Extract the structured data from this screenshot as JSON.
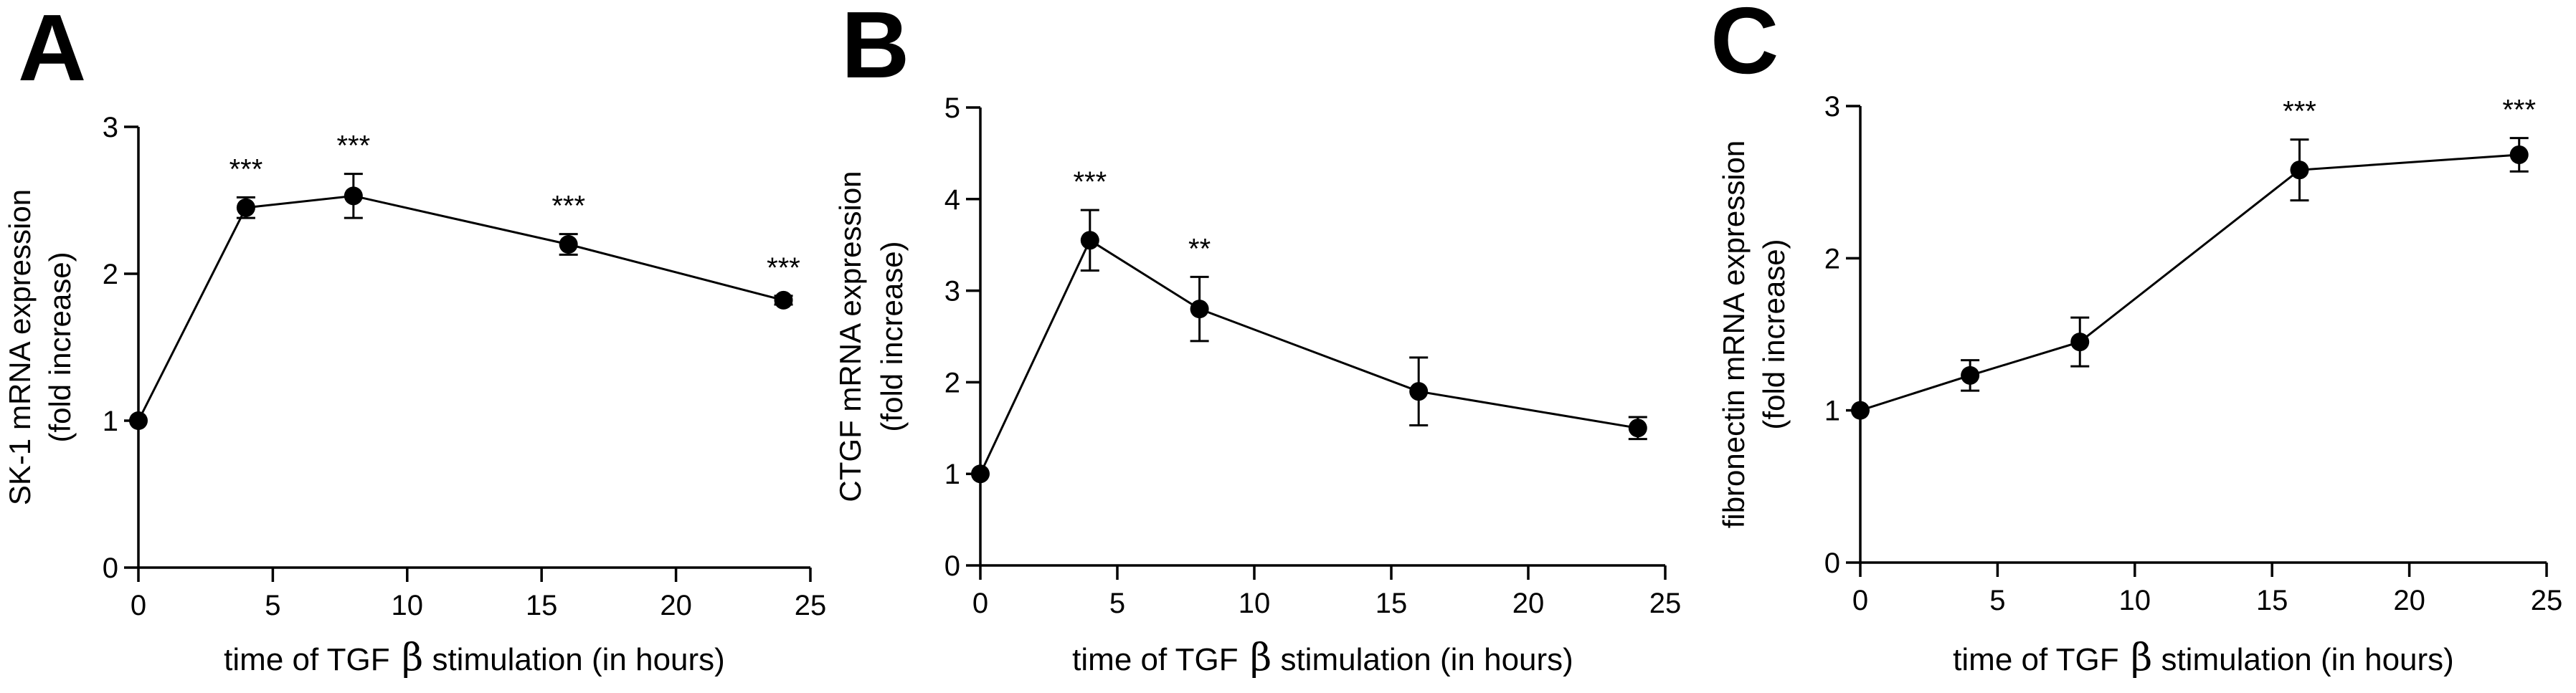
{
  "chart_data": [
    {
      "type": "line",
      "panel_label": "A",
      "title": "",
      "xlabel": "time of TGF",
      "xlabel_symbol": "β",
      "xlabel_suffix": " stimulation (in hours)",
      "ylabel": "SK-1 mRNA expression",
      "ylabel_line2": "(fold increase)",
      "xlim": [
        0,
        25
      ],
      "ylim": [
        0,
        3
      ],
      "xticks": [
        "0",
        "5",
        "10",
        "15",
        "20",
        "25"
      ],
      "yticks": [
        "0",
        "1",
        "2",
        "3"
      ],
      "series": [
        {
          "name": "SK-1",
          "x": [
            0,
            4,
            8,
            16,
            24
          ],
          "y": [
            1.0,
            2.45,
            2.53,
            2.2,
            1.82
          ],
          "error": [
            0.0,
            0.07,
            0.15,
            0.07,
            0.03
          ],
          "significance": [
            "",
            "***",
            "***",
            "***",
            "***"
          ]
        }
      ]
    },
    {
      "type": "line",
      "panel_label": "B",
      "title": "",
      "xlabel": "time of TGF",
      "xlabel_symbol": "β",
      "xlabel_suffix": " stimulation (in hours)",
      "ylabel": "CTGF mRNA expression",
      "ylabel_line2": "(fold increase)",
      "xlim": [
        0,
        25
      ],
      "ylim": [
        0,
        5
      ],
      "xticks": [
        "0",
        "5",
        "10",
        "15",
        "20",
        "25"
      ],
      "yticks": [
        "0",
        "1",
        "2",
        "3",
        "4",
        "5"
      ],
      "series": [
        {
          "name": "CTGF",
          "x": [
            0,
            4,
            8,
            16,
            24
          ],
          "y": [
            1.0,
            3.55,
            2.8,
            1.9,
            1.5
          ],
          "error": [
            0.0,
            0.33,
            0.35,
            0.37,
            0.12
          ],
          "significance": [
            "",
            "***",
            "**",
            "",
            ""
          ]
        }
      ]
    },
    {
      "type": "line",
      "panel_label": "C",
      "title": "",
      "xlabel": "time of TGF",
      "xlabel_symbol": "β",
      "xlabel_suffix": " stimulation (in hours)",
      "ylabel": "fibronectin mRNA expression",
      "ylabel_line2": "(fold increase)",
      "xlim": [
        0,
        25
      ],
      "ylim": [
        0,
        3
      ],
      "xticks": [
        "0",
        "5",
        "10",
        "15",
        "20",
        "25"
      ],
      "yticks": [
        "0",
        "1",
        "2",
        "3"
      ],
      "series": [
        {
          "name": "fibronectin",
          "x": [
            0,
            4,
            8,
            16,
            24
          ],
          "y": [
            1.0,
            1.23,
            1.45,
            2.58,
            2.68
          ],
          "error": [
            0.0,
            0.1,
            0.16,
            0.2,
            0.11
          ],
          "significance": [
            "",
            "",
            "",
            "***",
            "***"
          ]
        }
      ]
    }
  ]
}
